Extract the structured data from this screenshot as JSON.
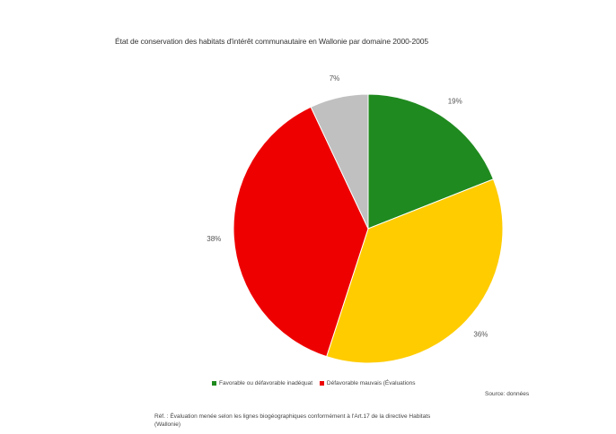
{
  "chart_data": {
    "type": "pie",
    "title": "État de conservation des habitats d'intérêt communautaire en Wallonie par domaine 2000-2005",
    "slices": [
      {
        "label": "19%",
        "value": 19,
        "color": "#1f8a1f"
      },
      {
        "label": "36%",
        "value": 36,
        "color": "#ffcc00"
      },
      {
        "label": "38%",
        "value": 38,
        "color": "#ee0000"
      },
      {
        "label": "7%",
        "value": 7,
        "color": "#c0c0c0"
      }
    ],
    "legend": [
      {
        "label": "Favorable ou défavorable inadéquat",
        "color": "#1f8a1f"
      },
      {
        "label": "Défavorable mauvais (Évaluations",
        "color": "#ee0000"
      }
    ],
    "legend_extra": "Source: données",
    "source_note": "Réf. : Évaluation menée selon les lignes biogéographiques conformément à l'Art.17 de la directive Habitats",
    "source_note_2": "(Wallonie)"
  }
}
